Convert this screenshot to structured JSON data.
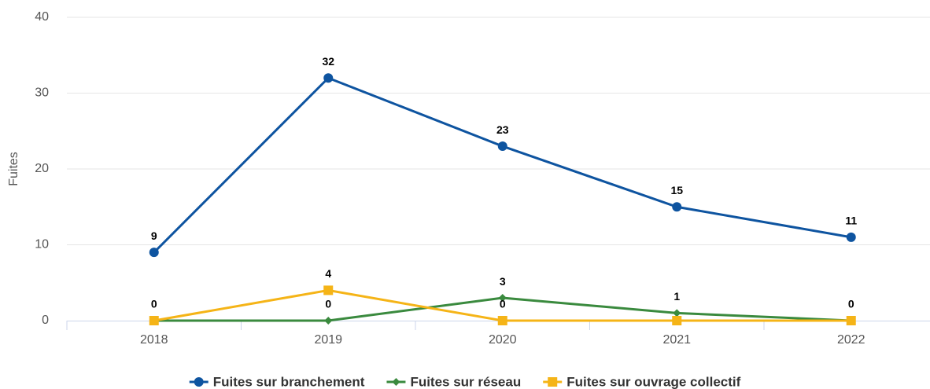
{
  "chart_data": {
    "type": "line",
    "y_label": "Fuites",
    "categories": [
      "2018",
      "2019",
      "2020",
      "2021",
      "2022"
    ],
    "series": [
      {
        "name": "Fuites sur branchement",
        "color": "#0e54a0",
        "marker": "circle",
        "values": [
          9,
          32,
          23,
          15,
          11
        ]
      },
      {
        "name": "Fuites sur réseau",
        "color": "#3a8a3e",
        "marker": "diamond",
        "values": [
          0,
          0,
          3,
          1,
          0
        ]
      },
      {
        "name": "Fuites sur ouvrage collectif",
        "color": "#f5b417",
        "marker": "square",
        "values": [
          0,
          4,
          0,
          0,
          0
        ]
      }
    ],
    "ylim": [
      0,
      40
    ],
    "yticks": [
      0,
      10,
      20,
      30,
      40
    ],
    "grid": true,
    "legend": "bottom"
  }
}
